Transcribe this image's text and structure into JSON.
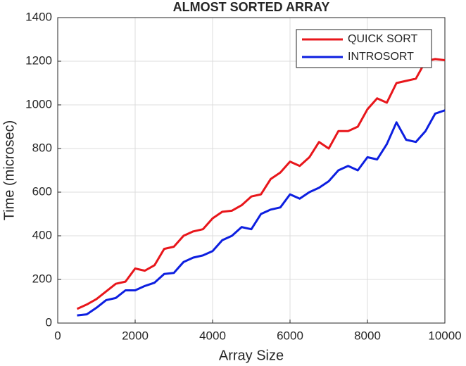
{
  "chart_data": {
    "type": "line",
    "title": "ALMOST SORTED ARRAY",
    "x_label": "Array Size",
    "y_label": "Time (microsec)",
    "x": [
      500,
      750,
      1000,
      1250,
      1500,
      1750,
      2000,
      2250,
      2500,
      2750,
      3000,
      3250,
      3500,
      3750,
      4000,
      4250,
      4500,
      4750,
      5000,
      5250,
      5500,
      5750,
      6000,
      6250,
      6500,
      6750,
      7000,
      7250,
      7500,
      7750,
      8000,
      8250,
      8500,
      8750,
      9000,
      9250,
      9500,
      9750,
      10000
    ],
    "series": [
      {
        "name": "QUICK SORT",
        "color": "#e8161b",
        "values": [
          65,
          85,
          110,
          145,
          180,
          190,
          250,
          240,
          265,
          340,
          350,
          400,
          420,
          430,
          480,
          510,
          515,
          540,
          580,
          590,
          660,
          690,
          740,
          720,
          760,
          830,
          800,
          880,
          880,
          900,
          980,
          1030,
          1010,
          1100,
          1110,
          1120,
          1200,
          1210,
          1205
        ]
      },
      {
        "name": "INTROSORT",
        "color": "#0d1fe0",
        "values": [
          35,
          40,
          70,
          105,
          115,
          150,
          150,
          170,
          185,
          225,
          230,
          280,
          300,
          310,
          330,
          380,
          400,
          440,
          430,
          500,
          520,
          530,
          590,
          570,
          600,
          620,
          650,
          700,
          720,
          700,
          760,
          750,
          820,
          920,
          840,
          830,
          880,
          960,
          975
        ]
      }
    ],
    "xlim": [
      0,
      10000
    ],
    "ylim": [
      0,
      1400
    ],
    "xticks": [
      0,
      2000,
      4000,
      6000,
      8000,
      10000
    ],
    "yticks": [
      0,
      200,
      400,
      600,
      800,
      1000,
      1200,
      1400
    ],
    "grid": true,
    "legend": "upper right"
  }
}
